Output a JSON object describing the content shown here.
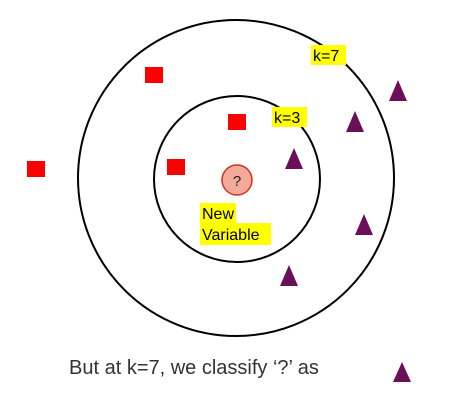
{
  "labels": {
    "k7": "k=7",
    "k3": "k=3",
    "query_symbol": "?",
    "new_line1": "New",
    "new_line2": "Variable"
  },
  "caption": "But at k=7, we classify ‘?’ as",
  "colors": {
    "square": "#ff0000",
    "triangle": "#6b0f59",
    "query_fill": "#f4aa99",
    "query_stroke": "#cc3322",
    "highlight": "#ffff00",
    "circle_stroke": "#000000"
  }
}
